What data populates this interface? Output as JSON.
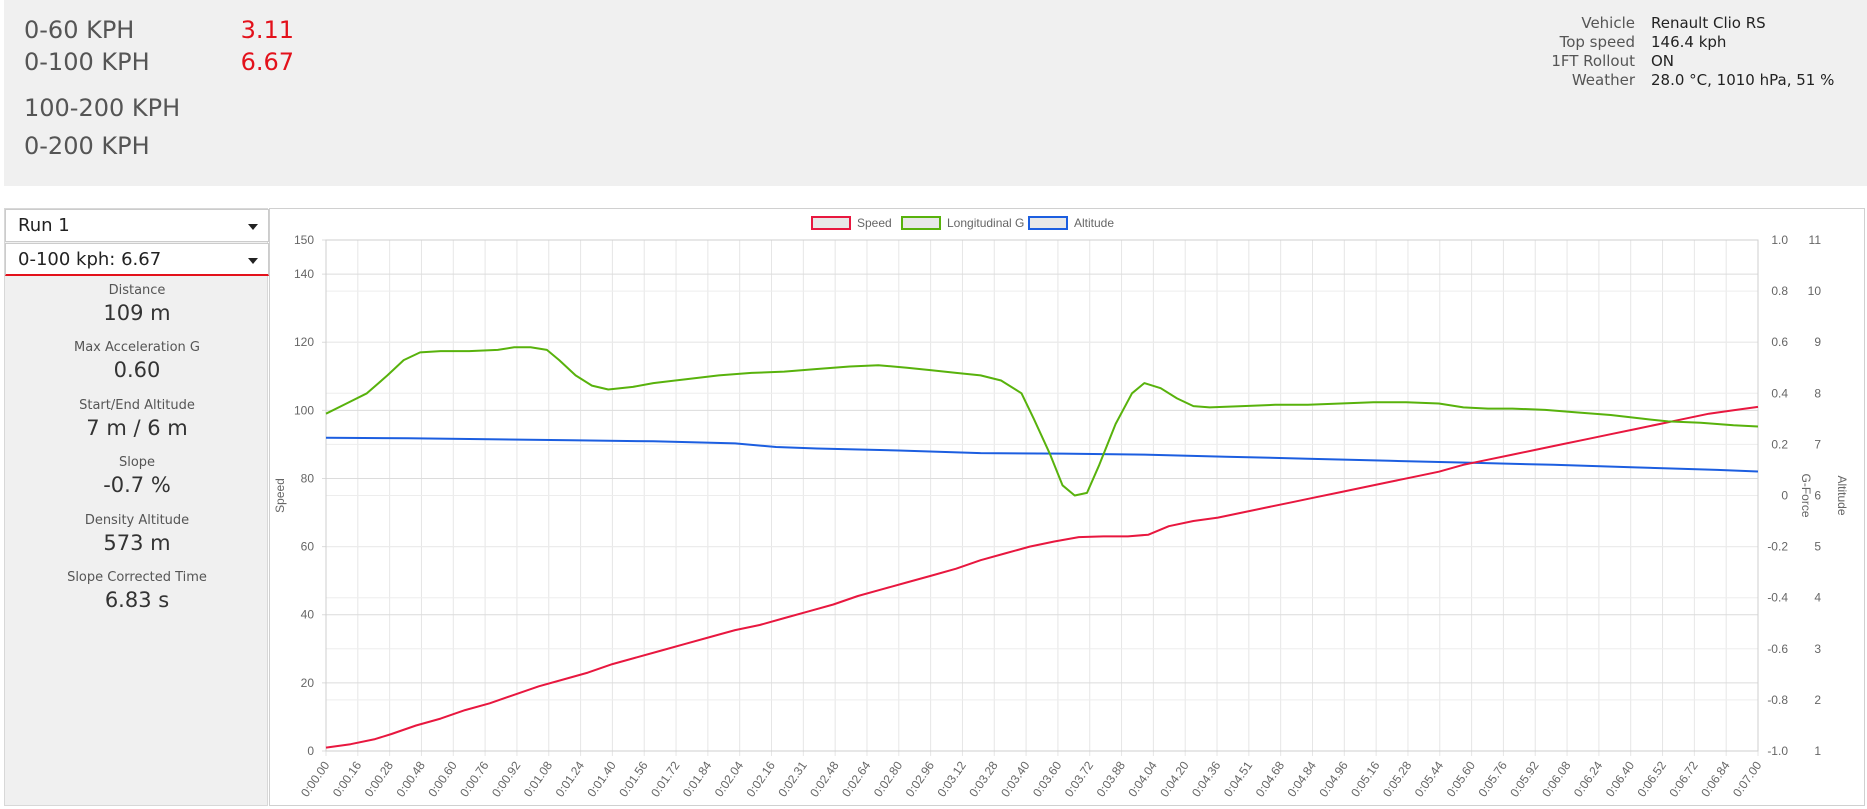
{
  "times": [
    {
      "label": "0-60 KPH",
      "value": "3.11"
    },
    {
      "label": "0-100 KPH",
      "value": "6.67"
    },
    {
      "label": "100-200 KPH",
      "value": ""
    },
    {
      "label": "0-200 KPH",
      "value": ""
    }
  ],
  "info": [
    {
      "key": "Vehicle",
      "value": "Renault Clio RS"
    },
    {
      "key": "Top speed",
      "value": "146.4 kph"
    },
    {
      "key": "1FT Rollout",
      "value": "ON"
    },
    {
      "key": "Weather",
      "value": "28.0 °C, 1010 hPa, 51 %"
    }
  ],
  "run_select": {
    "value": "Run 1"
  },
  "segment_select": {
    "value": "0-100 kph: 6.67"
  },
  "stats": [
    {
      "label": "Distance",
      "value": "109 m"
    },
    {
      "label": "Max Acceleration G",
      "value": "0.60"
    },
    {
      "label": "Start/End Altitude",
      "value": "7 m / 6 m"
    },
    {
      "label": "Slope",
      "value": "-0.7 %"
    },
    {
      "label": "Density Altitude",
      "value": "573 m"
    },
    {
      "label": "Slope Corrected Time",
      "value": "6.83 s"
    }
  ],
  "colors": {
    "speed": "#e8173f",
    "g": "#58b20c",
    "altitude": "#1c5ee0",
    "highlight": "#e3111b"
  },
  "chart_data": {
    "type": "line",
    "x_labels": [
      "0:00.00",
      "0:00.16",
      "0:00.28",
      "0:00.48",
      "0:00.60",
      "0:00.76",
      "0:00.92",
      "0:01.08",
      "0:01.24",
      "0:01.40",
      "0:01.56",
      "0:01.72",
      "0:01.84",
      "0:02.04",
      "0:02.16",
      "0:02.31",
      "0:02.48",
      "0:02.64",
      "0:02.80",
      "0:02.96",
      "0:03.12",
      "0:03.28",
      "0:03.40",
      "0:03.60",
      "0:03.72",
      "0:03.88",
      "0:04.04",
      "0:04.20",
      "0:04.36",
      "0:04.51",
      "0:04.68",
      "0:04.84",
      "0:04.96",
      "0:05.16",
      "0:05.28",
      "0:05.44",
      "0:05.60",
      "0:05.76",
      "0:05.92",
      "0:06.08",
      "0:06.24",
      "0:06.40",
      "0:06.52",
      "0:06.72",
      "0:06.84",
      "0:07.00"
    ],
    "x_range": [
      0,
      7.0
    ],
    "legend": [
      "Speed",
      "Longitudinal G",
      "Altitude"
    ],
    "axes": {
      "speed": {
        "title": "Speed",
        "min": 0,
        "max": 150,
        "ticks": [
          0,
          20,
          40,
          60,
          80,
          100,
          120,
          140,
          150
        ]
      },
      "g": {
        "title": "G-Force",
        "min": -1.0,
        "max": 1.0,
        "ticks": [
          "-1.0",
          "-0.8",
          "-0.6",
          "-0.4",
          "-0.2",
          "0",
          "0.2",
          "0.4",
          "0.6",
          "0.8",
          "1.0"
        ]
      },
      "altitude": {
        "title": "Altitude",
        "min": 1,
        "max": 11,
        "ticks": [
          1,
          2,
          3,
          4,
          5,
          6,
          7,
          8,
          9,
          10,
          11
        ]
      }
    },
    "series": [
      {
        "name": "Speed",
        "axis": "speed",
        "points": [
          [
            0,
            1
          ],
          [
            0.12,
            2
          ],
          [
            0.24,
            3.5
          ],
          [
            0.32,
            5
          ],
          [
            0.44,
            7.5
          ],
          [
            0.56,
            9.5
          ],
          [
            0.68,
            12
          ],
          [
            0.8,
            14
          ],
          [
            0.92,
            16.5
          ],
          [
            1.04,
            19
          ],
          [
            1.16,
            21
          ],
          [
            1.28,
            23
          ],
          [
            1.4,
            25.5
          ],
          [
            1.52,
            27.5
          ],
          [
            1.64,
            29.5
          ],
          [
            1.76,
            31.5
          ],
          [
            1.88,
            33.5
          ],
          [
            2.0,
            35.5
          ],
          [
            2.12,
            37
          ],
          [
            2.24,
            39
          ],
          [
            2.36,
            41
          ],
          [
            2.48,
            43
          ],
          [
            2.6,
            45.5
          ],
          [
            2.72,
            47.5
          ],
          [
            2.84,
            49.5
          ],
          [
            2.96,
            51.5
          ],
          [
            3.08,
            53.5
          ],
          [
            3.2,
            56
          ],
          [
            3.32,
            58
          ],
          [
            3.44,
            60
          ],
          [
            3.56,
            61.5
          ],
          [
            3.68,
            62.8
          ],
          [
            3.8,
            63
          ],
          [
            3.92,
            63
          ],
          [
            4.02,
            63.5
          ],
          [
            4.12,
            66
          ],
          [
            4.24,
            67.5
          ],
          [
            4.36,
            68.5
          ],
          [
            4.48,
            70
          ],
          [
            4.6,
            71.5
          ],
          [
            4.72,
            73
          ],
          [
            4.84,
            74.5
          ],
          [
            4.96,
            76
          ],
          [
            5.08,
            77.5
          ],
          [
            5.2,
            79
          ],
          [
            5.32,
            80.5
          ],
          [
            5.44,
            82
          ],
          [
            5.56,
            84
          ],
          [
            5.68,
            85.5
          ],
          [
            5.8,
            87
          ],
          [
            5.92,
            88.5
          ],
          [
            6.04,
            90
          ],
          [
            6.16,
            91.5
          ],
          [
            6.28,
            93
          ],
          [
            6.4,
            94.5
          ],
          [
            6.52,
            96
          ],
          [
            6.64,
            97.5
          ],
          [
            6.76,
            99
          ],
          [
            6.88,
            100
          ],
          [
            7.0,
            101
          ]
        ]
      },
      {
        "name": "Longitudinal G",
        "axis": "g",
        "points": [
          [
            0,
            0.32
          ],
          [
            0.1,
            0.36
          ],
          [
            0.2,
            0.4
          ],
          [
            0.3,
            0.47
          ],
          [
            0.38,
            0.53
          ],
          [
            0.46,
            0.56
          ],
          [
            0.56,
            0.565
          ],
          [
            0.7,
            0.565
          ],
          [
            0.84,
            0.57
          ],
          [
            0.92,
            0.58
          ],
          [
            1.0,
            0.58
          ],
          [
            1.08,
            0.57
          ],
          [
            1.14,
            0.53
          ],
          [
            1.22,
            0.47
          ],
          [
            1.3,
            0.43
          ],
          [
            1.38,
            0.415
          ],
          [
            1.5,
            0.425
          ],
          [
            1.6,
            0.44
          ],
          [
            1.76,
            0.455
          ],
          [
            1.92,
            0.47
          ],
          [
            2.08,
            0.48
          ],
          [
            2.24,
            0.485
          ],
          [
            2.4,
            0.495
          ],
          [
            2.56,
            0.505
          ],
          [
            2.7,
            0.51
          ],
          [
            2.84,
            0.5
          ],
          [
            2.96,
            0.49
          ],
          [
            3.08,
            0.48
          ],
          [
            3.2,
            0.47
          ],
          [
            3.3,
            0.45
          ],
          [
            3.4,
            0.4
          ],
          [
            3.46,
            0.3
          ],
          [
            3.54,
            0.16
          ],
          [
            3.6,
            0.04
          ],
          [
            3.66,
            0.0
          ],
          [
            3.72,
            0.01
          ],
          [
            3.78,
            0.12
          ],
          [
            3.86,
            0.28
          ],
          [
            3.94,
            0.4
          ],
          [
            4.0,
            0.44
          ],
          [
            4.08,
            0.42
          ],
          [
            4.16,
            0.38
          ],
          [
            4.24,
            0.35
          ],
          [
            4.32,
            0.345
          ],
          [
            4.48,
            0.35
          ],
          [
            4.64,
            0.355
          ],
          [
            4.8,
            0.355
          ],
          [
            4.96,
            0.36
          ],
          [
            5.12,
            0.365
          ],
          [
            5.28,
            0.365
          ],
          [
            5.44,
            0.36
          ],
          [
            5.56,
            0.345
          ],
          [
            5.68,
            0.34
          ],
          [
            5.8,
            0.34
          ],
          [
            5.96,
            0.335
          ],
          [
            6.12,
            0.325
          ],
          [
            6.28,
            0.315
          ],
          [
            6.44,
            0.3
          ],
          [
            6.56,
            0.29
          ],
          [
            6.72,
            0.285
          ],
          [
            6.88,
            0.275
          ],
          [
            7.0,
            0.27
          ]
        ]
      },
      {
        "name": "Altitude",
        "axis": "altitude",
        "points": [
          [
            0,
            7.13
          ],
          [
            0.4,
            7.12
          ],
          [
            0.8,
            7.1
          ],
          [
            1.2,
            7.08
          ],
          [
            1.6,
            7.06
          ],
          [
            2.0,
            7.02
          ],
          [
            2.2,
            6.95
          ],
          [
            2.4,
            6.92
          ],
          [
            2.8,
            6.88
          ],
          [
            3.2,
            6.83
          ],
          [
            3.6,
            6.82
          ],
          [
            4.0,
            6.8
          ],
          [
            4.4,
            6.76
          ],
          [
            4.8,
            6.72
          ],
          [
            5.2,
            6.68
          ],
          [
            5.6,
            6.64
          ],
          [
            6.0,
            6.6
          ],
          [
            6.4,
            6.55
          ],
          [
            6.8,
            6.5
          ],
          [
            7.0,
            6.47
          ]
        ]
      }
    ]
  }
}
